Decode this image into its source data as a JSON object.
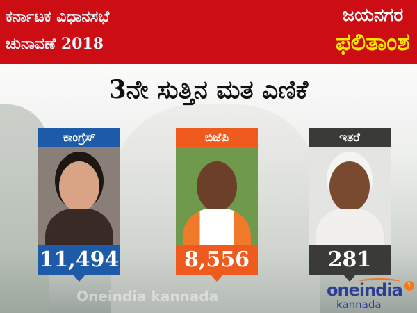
{
  "banner": {
    "line1": "ಕರ್ನಾಟಕ ವಿಧಾನಸಭೆ",
    "line2": "ಚುನಾವಣೆ 2018",
    "constituency": "ಜಯನಗರ",
    "result_label": "ಫಲಿತಾಂಶ",
    "bg_color": "#cc0e14",
    "accent_color": "#ffe800"
  },
  "title": "3ನೇ ಸುತ್ತಿನ ಮತ ಎಣಿಕೆ",
  "candidates": [
    {
      "party": "ಕಾಂಗ್ರೆಸ್",
      "votes": "11,494",
      "color": "#1d5aa8"
    },
    {
      "party": "ಬಿಜೆಪಿ",
      "votes": "8,556",
      "color": "#ef5a1e"
    },
    {
      "party": "ಇತರೆ",
      "votes": "281",
      "color": "#3a3a38"
    }
  ],
  "watermark": "Oneindia kannada",
  "logo": {
    "brand": "oneindia",
    "sub": "kannada",
    "badge": "1"
  }
}
